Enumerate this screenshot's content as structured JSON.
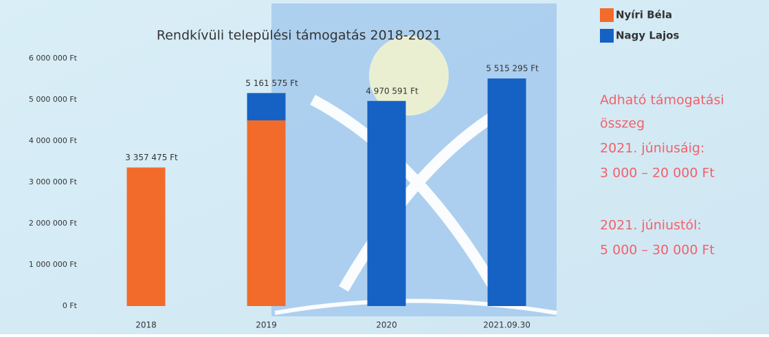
{
  "chart_data": {
    "type": "stacked_bar",
    "title": "Rendkívüli települési támogatás 2018-2021",
    "categories": [
      "2018",
      "2019",
      "2020",
      "2021.09.30"
    ],
    "series": [
      {
        "name": "Nyíri Béla",
        "color": "#f26b2a",
        "values": [
          3357475,
          4500000,
          null,
          null
        ]
      },
      {
        "name": "Nagy Lajos",
        "color": "#1562c4",
        "values": [
          null,
          661575,
          4970591,
          5515295
        ]
      }
    ],
    "totals": [
      3357475,
      5161575,
      4970591,
      5515295
    ],
    "total_labels": [
      "3 357 475 Ft",
      "5 161 575 Ft",
      "4 970 591 Ft",
      "5 515 295 Ft"
    ],
    "ylim": [
      0,
      6000000
    ],
    "yticks": [
      {
        "value": 0,
        "label": "0 Ft"
      },
      {
        "value": 1000000,
        "label": "1 000 000 Ft"
      },
      {
        "value": 2000000,
        "label": "2 000 000 Ft"
      },
      {
        "value": 3000000,
        "label": "3 000 000 Ft"
      },
      {
        "value": 4000000,
        "label": "4 000 000 Ft"
      },
      {
        "value": 5000000,
        "label": "5 000 000 Ft"
      },
      {
        "value": 6000000,
        "label": "6 000 000 Ft"
      }
    ],
    "grid": false,
    "legend": "top-right",
    "annotations": [
      "Adható támogatási",
      "összeg",
      "2021. júniusáig:",
      "3 000 – 20 000 Ft",
      "2021. júniustól:",
      "5 000 – 30 000 Ft"
    ]
  }
}
